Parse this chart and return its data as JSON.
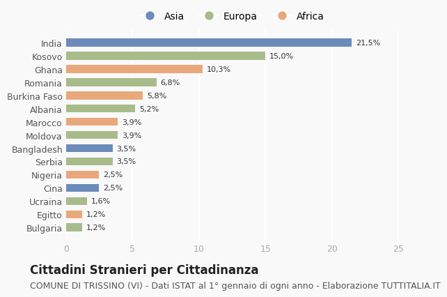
{
  "categories": [
    "India",
    "Kosovo",
    "Ghana",
    "Romania",
    "Burkina Faso",
    "Albania",
    "Marocco",
    "Moldova",
    "Bangladesh",
    "Serbia",
    "Nigeria",
    "Cina",
    "Ucraina",
    "Egitto",
    "Bulgaria"
  ],
  "values": [
    21.5,
    15.0,
    10.3,
    6.8,
    5.8,
    5.2,
    3.9,
    3.9,
    3.5,
    3.5,
    2.5,
    2.5,
    1.6,
    1.2,
    1.2
  ],
  "labels": [
    "21,5%",
    "15,0%",
    "10,3%",
    "6,8%",
    "5,8%",
    "5,2%",
    "3,9%",
    "3,9%",
    "3,5%",
    "3,5%",
    "2,5%",
    "2,5%",
    "1,6%",
    "1,2%",
    "1,2%"
  ],
  "continents": [
    "Asia",
    "Europa",
    "Africa",
    "Europa",
    "Africa",
    "Europa",
    "Africa",
    "Europa",
    "Asia",
    "Europa",
    "Africa",
    "Asia",
    "Europa",
    "Africa",
    "Europa"
  ],
  "colors": {
    "Asia": "#6b8cba",
    "Europa": "#a8bb8a",
    "Africa": "#e8a87c"
  },
  "legend_labels": [
    "Asia",
    "Europa",
    "Africa"
  ],
  "xlim": [
    0,
    25
  ],
  "title": "Cittadini Stranieri per Cittadinanza",
  "subtitle": "COMUNE DI TRISSINO (VI) - Dati ISTAT al 1° gennaio di ogni anno - Elaborazione TUTTITALIA.IT",
  "title_fontsize": 12,
  "subtitle_fontsize": 9,
  "background_color": "#f9f9f9",
  "grid_color": "#ffffff",
  "bar_height": 0.6
}
